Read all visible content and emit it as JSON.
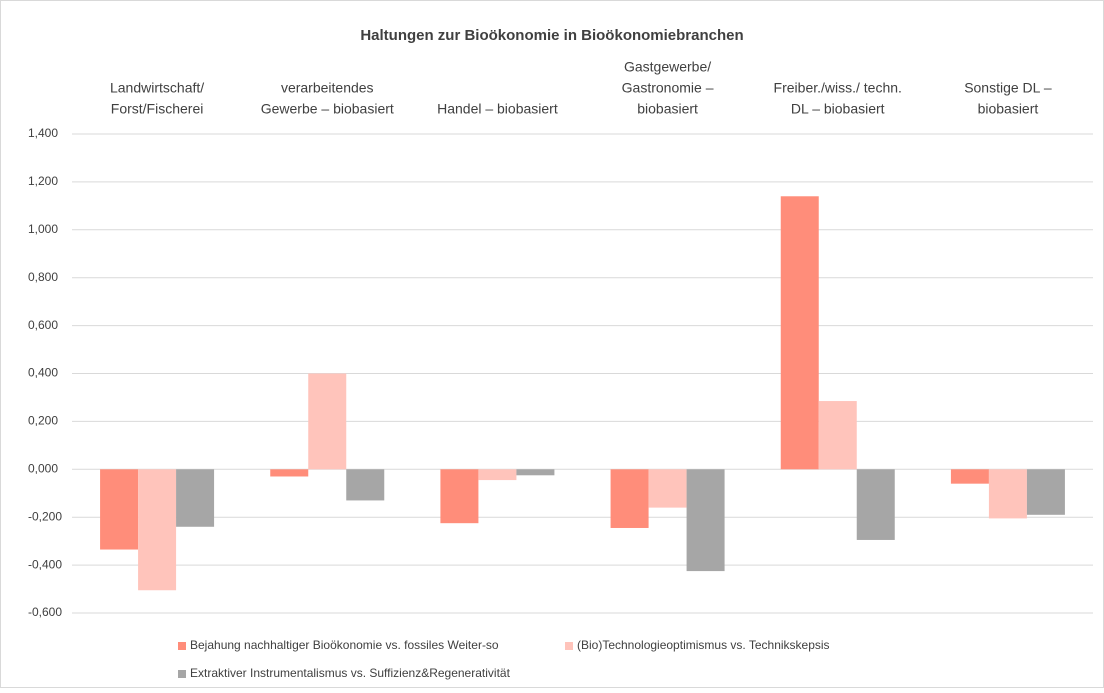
{
  "chart_data": {
    "type": "bar",
    "title": "Haltungen zur Bioökonomie in Bioökonomiebranchen",
    "categories": [
      [
        "Landwirtschaft/",
        "Forst/Fischerei"
      ],
      [
        "verarbeitendes",
        "Gewerbe – biobasiert"
      ],
      [
        "Handel – biobasiert"
      ],
      [
        "Gastgewerbe/",
        "Gastronomie –",
        "biobasiert"
      ],
      [
        "Freiber./wiss./ techn.",
        "DL – biobasiert"
      ],
      [
        "Sonstige DL –",
        "biobasiert"
      ]
    ],
    "series": [
      {
        "name": "Bejahung nachhaltiger Bioökonomie vs. fossiles Weiter-so",
        "color": "#ff8d7a",
        "values": [
          -0.335,
          -0.03,
          -0.225,
          -0.245,
          1.14,
          -0.06
        ]
      },
      {
        "name": "(Bio)Technologieoptimismus vs. Technikskepsis",
        "color": "#ffc4bb",
        "values": [
          -0.505,
          0.4,
          -0.045,
          -0.16,
          0.285,
          -0.205
        ]
      },
      {
        "name": "Extraktiver Instrumentalismus vs. Suffizienz&Regenerativität",
        "color": "#a6a6a6",
        "values": [
          -0.24,
          -0.13,
          -0.025,
          -0.425,
          -0.295,
          -0.19
        ]
      }
    ],
    "ylim": [
      -0.6,
      1.4
    ],
    "yticks": [
      {
        "value": -0.6,
        "label": "-0,600"
      },
      {
        "value": -0.4,
        "label": "-0,400"
      },
      {
        "value": -0.2,
        "label": "-0,200"
      },
      {
        "value": 0,
        "label": "0,000"
      },
      {
        "value": 0.2,
        "label": "0,200"
      },
      {
        "value": 0.4,
        "label": "0,400"
      },
      {
        "value": 0.6,
        "label": "0,600"
      },
      {
        "value": 0.8,
        "label": "0,800"
      },
      {
        "value": 1.0,
        "label": "1,000"
      },
      {
        "value": 1.2,
        "label": "1,200"
      },
      {
        "value": 1.4,
        "label": "1,400"
      }
    ],
    "grid": true,
    "legend": "bottom"
  }
}
